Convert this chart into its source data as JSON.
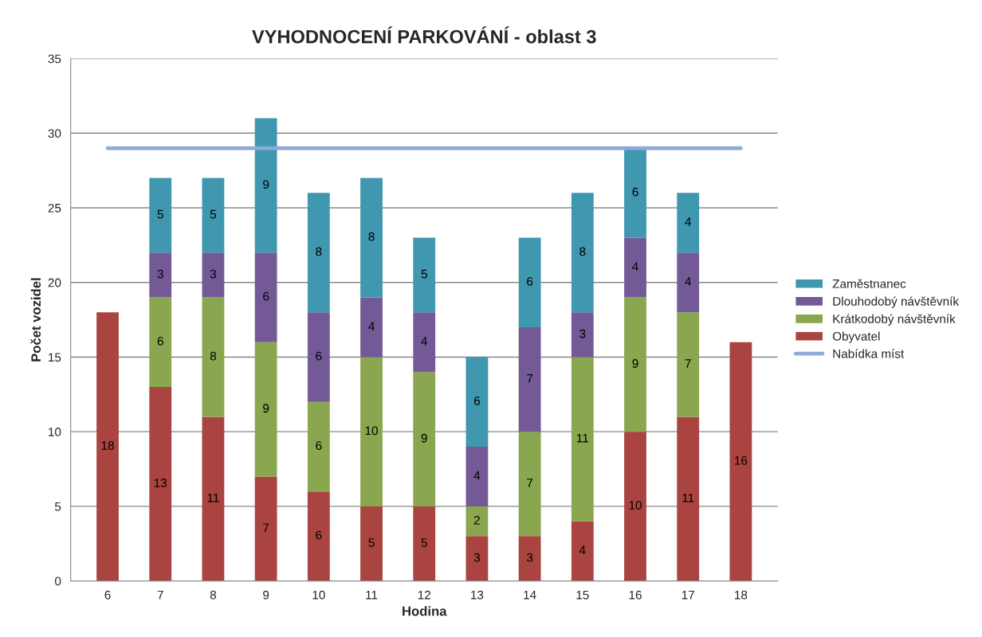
{
  "chart_data": {
    "type": "bar",
    "title": "VYHODNOCENÍ PARKOVÁNÍ - oblast 3",
    "xlabel": "Hodina",
    "ylabel": "Počet vozidel",
    "categories": [
      "6",
      "7",
      "8",
      "9",
      "10",
      "11",
      "12",
      "13",
      "14",
      "15",
      "16",
      "17",
      "18"
    ],
    "stacked": true,
    "grid": "y",
    "legend": "right",
    "ylim": [
      0,
      35
    ],
    "yticks": [
      0,
      5,
      10,
      15,
      20,
      25,
      30,
      35
    ],
    "series": [
      {
        "name": "Obyvatel",
        "color": "#a94441",
        "values": [
          18,
          13,
          11,
          7,
          6,
          5,
          5,
          3,
          3,
          4,
          10,
          11,
          16
        ],
        "value_labels": [
          "18",
          "13",
          "11",
          "7",
          "6",
          "5",
          "5",
          "3",
          "3",
          "4",
          "10",
          "11",
          "16"
        ]
      },
      {
        "name": "Krátkodobý návštěvník",
        "color": "#8aa64f",
        "values": [
          null,
          6,
          8,
          9,
          6,
          10,
          9,
          2,
          7,
          11,
          9,
          7,
          null
        ],
        "value_labels": [
          null,
          "6",
          "8",
          "9",
          "6",
          "10",
          "9",
          "2",
          "7",
          "11",
          "9",
          "7",
          null
        ]
      },
      {
        "name": "Dlouhodobý návštěvník",
        "color": "#735a97",
        "values": [
          null,
          3,
          3,
          6,
          6,
          4,
          4,
          4,
          7,
          3,
          4,
          4,
          null
        ],
        "value_labels": [
          null,
          "3",
          "3",
          "6",
          "6",
          "4",
          "4",
          "4",
          "7",
          "3",
          "4",
          "4",
          null
        ]
      },
      {
        "name": "Zaměstnanec",
        "color": "#3f97b0",
        "values": [
          null,
          5,
          5,
          9,
          8,
          8,
          5,
          6,
          6,
          8,
          6,
          4,
          null
        ],
        "value_labels": [
          null,
          "5",
          "5",
          "9",
          "8",
          "8",
          "5",
          "6",
          "6",
          "8",
          "6",
          "4",
          null
        ]
      },
      {
        "name": "Nabídka míst",
        "type": "line",
        "color": "#8eaad8",
        "values": [
          29,
          29,
          29,
          29,
          29,
          29,
          29,
          29,
          29,
          29,
          29,
          29,
          29
        ]
      }
    ]
  }
}
